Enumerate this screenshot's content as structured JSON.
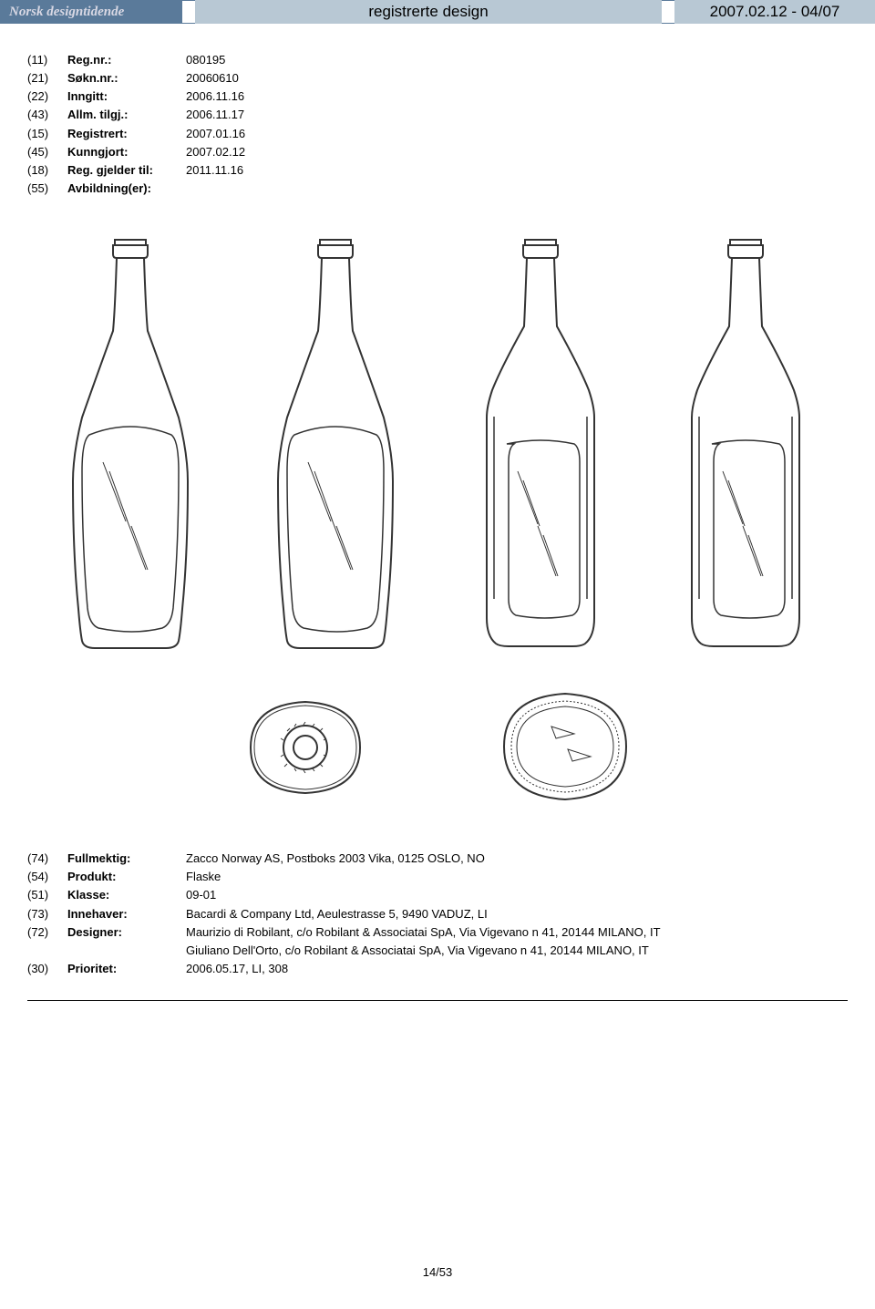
{
  "header": {
    "brand": "Norsk designtidende",
    "title": "registrerte design",
    "issue": "2007.02.12 - 04/07"
  },
  "top_fields": [
    {
      "code": "(11)",
      "label": "Reg.nr.:",
      "value": "080195",
      "bold": true
    },
    {
      "code": "(21)",
      "label": "Søkn.nr.:",
      "value": "20060610",
      "bold": true
    },
    {
      "code": "(22)",
      "label": "Inngitt:",
      "value": "2006.11.16",
      "bold": true
    },
    {
      "code": "(43)",
      "label": "Allm. tilgj.:",
      "value": "2006.11.17",
      "bold": true
    },
    {
      "code": "(15)",
      "label": "Registrert:",
      "value": "2007.01.16",
      "bold": true
    },
    {
      "code": "(45)",
      "label": "Kunngjort:",
      "value": "2007.02.12",
      "bold": true
    },
    {
      "code": "(18)",
      "label": "Reg. gjelder til:",
      "value": "2011.11.16",
      "bold": true
    },
    {
      "code": "(55)",
      "label": "Avbildning(er):",
      "value": "",
      "bold": true
    }
  ],
  "bottom_fields": [
    {
      "code": "(74)",
      "label": "Fullmektig:",
      "value": "Zacco Norway AS, Postboks 2003 Vika, 0125 OSLO, NO"
    },
    {
      "code": "(54)",
      "label": "Produkt:",
      "value": "Flaske"
    },
    {
      "code": "(51)",
      "label": "Klasse:",
      "value": "09-01"
    },
    {
      "code": "(73)",
      "label": "Innehaver:",
      "value": "Bacardi & Company Ltd, Aeulestrasse 5, 9490 VADUZ, LI"
    },
    {
      "code": "(72)",
      "label": "Designer:",
      "value": "Maurizio di Robilant, c/o Robilant & Associatai SpA, Via Vigevano n 41, 20144 MILANO, IT"
    },
    {
      "code": "",
      "label": "",
      "value": "Giuliano Dell'Orto, c/o Robilant & Associatai SpA, Via Vigevano n 41, 20144 MILANO, IT"
    },
    {
      "code": "(30)",
      "label": "Prioritet:",
      "value": "2006.05.17, LI, 308"
    }
  ],
  "page_indicator": "14/53",
  "style": {
    "header_bg_dark": "#5a7a9a",
    "header_bg_light": "#b8c8d4",
    "header_brand_color": "#d8d8e4",
    "body_font_size": 13,
    "header_font_size_center": 17,
    "stroke": "#333333"
  }
}
